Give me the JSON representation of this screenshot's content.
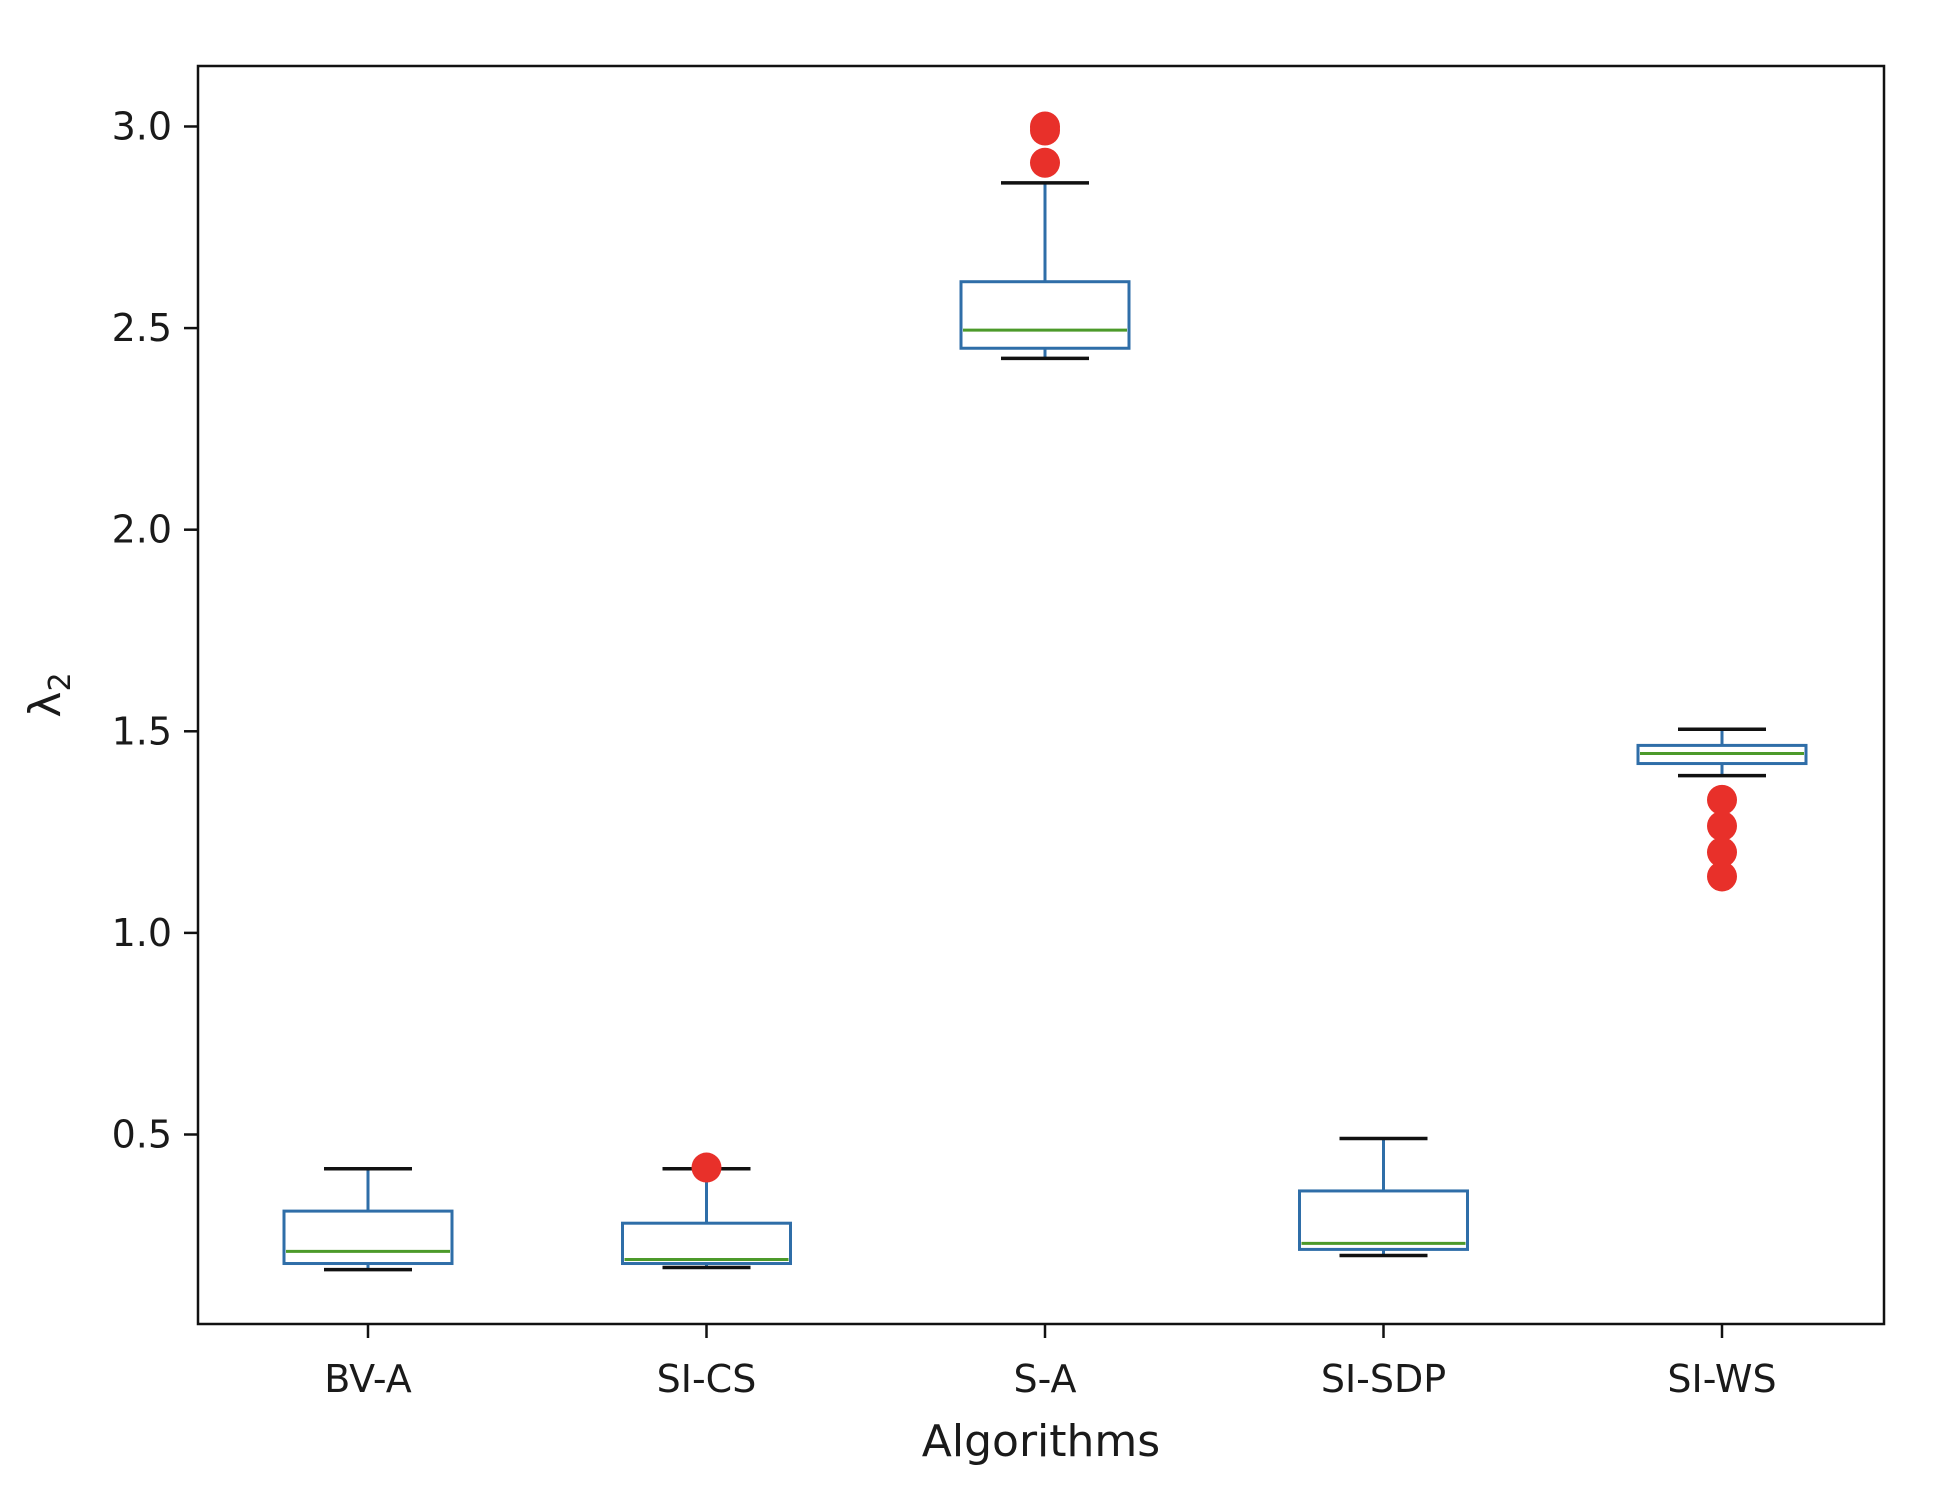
{
  "chart_data": {
    "type": "box",
    "title": "",
    "xlabel": "Algorithms",
    "ylabel": "λ",
    "ylabel_subscript": "2",
    "ylim": [
      0.03,
      3.15
    ],
    "yticks": [
      0.5,
      1.0,
      1.5,
      2.0,
      2.5,
      3.0
    ],
    "ytick_labels": [
      "0.5",
      "1.0",
      "1.5",
      "2.0",
      "2.5",
      "3.0"
    ],
    "grid": false,
    "colors": {
      "box": "#2f6ea8",
      "median": "#4c9a2a",
      "cap": "#111111",
      "outlier": "#e8302a",
      "axis": "#111111"
    },
    "categories": [
      "BV-A",
      "SI-CS",
      "S-A",
      "SI-SDP",
      "SI-WS"
    ],
    "boxes": [
      {
        "name": "BV-A",
        "whisker_low": 0.165,
        "q1": 0.18,
        "median": 0.21,
        "q3": 0.31,
        "whisker_high": 0.415,
        "outliers": []
      },
      {
        "name": "SI-CS",
        "whisker_low": 0.17,
        "q1": 0.18,
        "median": 0.19,
        "q3": 0.28,
        "whisker_high": 0.415,
        "outliers": [
          0.418
        ]
      },
      {
        "name": "S-A",
        "whisker_low": 2.425,
        "q1": 2.45,
        "median": 2.495,
        "q3": 2.615,
        "whisker_high": 2.86,
        "outliers": [
          2.91,
          2.99,
          3.0
        ]
      },
      {
        "name": "SI-SDP",
        "whisker_low": 0.2,
        "q1": 0.215,
        "median": 0.23,
        "q3": 0.36,
        "whisker_high": 0.49,
        "outliers": []
      },
      {
        "name": "SI-WS",
        "whisker_low": 1.39,
        "q1": 1.42,
        "median": 1.445,
        "q3": 1.465,
        "whisker_high": 1.505,
        "outliers": [
          1.14,
          1.2,
          1.265,
          1.33
        ]
      }
    ]
  }
}
